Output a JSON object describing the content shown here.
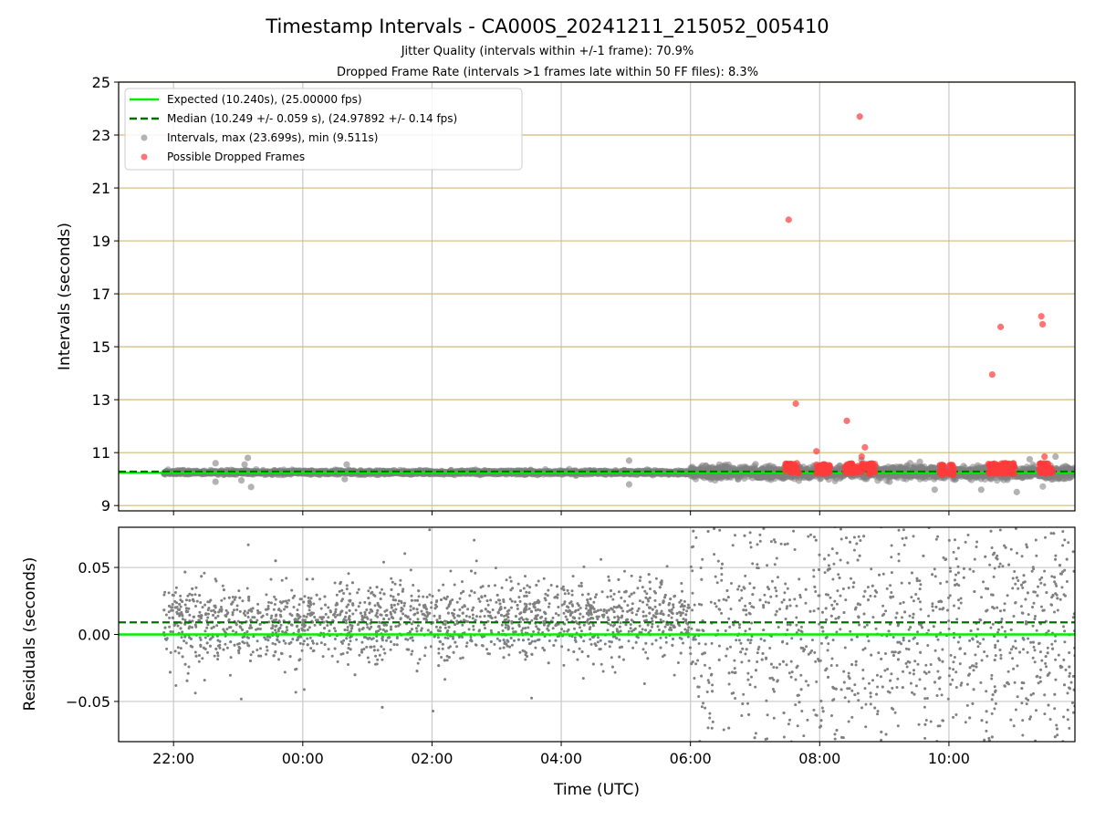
{
  "title": "Timestamp Intervals - CA000S_20241211_215052_005410",
  "subtitle_jitter": "Jitter Quality (intervals within +/-1 frame): 70.9%",
  "subtitle_dropped": "Dropped Frame Rate (intervals >1 frames late within 50 FF files): 8.3%",
  "colors": {
    "expected": "#00ee00",
    "median": "#007000",
    "intervals": "#808080",
    "dropped": "#ff3b3b",
    "hgrid": "#d2b878",
    "vgrid": "#c8c8c8"
  },
  "chart_data": [
    {
      "type": "scatter",
      "panel": "top",
      "ylabel": "Intervals (seconds)",
      "xlim_hours": [
        -2.85,
        11.95
      ],
      "ylim": [
        8.8,
        25
      ],
      "yticks": [
        "9",
        "11",
        "13",
        "15",
        "17",
        "19",
        "21",
        "23",
        "25"
      ],
      "grid": true,
      "legend_position": "top-left",
      "legend": [
        "Expected (10.240s), (25.00000 fps)",
        "Median (10.249 +/- 0.059 s), (24.97892 +/- 0.14 fps)",
        "Intervals, max (23.699s), min (9.511s)",
        "Possible Dropped Frames"
      ],
      "expected_y": 10.24,
      "median_y": 10.249,
      "intervals_max": 23.699,
      "intervals_min": 9.511,
      "dropped_clusters": [
        {
          "x": 7.57,
          "y": 10.4
        },
        {
          "x": 8.05,
          "y": 10.4
        },
        {
          "x": 8.5,
          "y": 10.4
        },
        {
          "x": 8.75,
          "y": 10.4
        },
        {
          "x": 9.97,
          "y": 10.35
        },
        {
          "x": 10.72,
          "y": 10.4
        },
        {
          "x": 10.92,
          "y": 10.4
        },
        {
          "x": 11.5,
          "y": 10.4
        }
      ],
      "dropped_outliers": [
        {
          "x": 8.62,
          "y": 23.699
        },
        {
          "x": 7.52,
          "y": 19.8
        },
        {
          "x": 7.63,
          "y": 12.85
        },
        {
          "x": 8.42,
          "y": 12.2
        },
        {
          "x": 7.95,
          "y": 11.05
        },
        {
          "x": 8.7,
          "y": 11.2
        },
        {
          "x": 8.65,
          "y": 10.85
        },
        {
          "x": 10.67,
          "y": 13.95
        },
        {
          "x": 10.8,
          "y": 15.75
        },
        {
          "x": 11.43,
          "y": 16.15
        },
        {
          "x": 11.45,
          "y": 15.85
        },
        {
          "x": 11.48,
          "y": 10.85
        }
      ],
      "interval_outliers": [
        {
          "x": -1.35,
          "y": 10.6
        },
        {
          "x": -0.85,
          "y": 10.8
        },
        {
          "x": -0.9,
          "y": 10.55
        },
        {
          "x": -0.95,
          "y": 9.95
        },
        {
          "x": -1.35,
          "y": 9.9
        },
        {
          "x": -0.8,
          "y": 9.7
        },
        {
          "x": 0.68,
          "y": 10.55
        },
        {
          "x": 0.5,
          "y": 10.35
        },
        {
          "x": 0.65,
          "y": 10.0
        },
        {
          "x": 4.6,
          "y": 10.3
        },
        {
          "x": 5.05,
          "y": 10.7
        },
        {
          "x": 5.05,
          "y": 9.8
        },
        {
          "x": 9.08,
          "y": 9.9
        },
        {
          "x": 9.4,
          "y": 10.6
        },
        {
          "x": 9.55,
          "y": 10.65
        },
        {
          "x": 9.78,
          "y": 9.6
        },
        {
          "x": 10.5,
          "y": 9.6
        },
        {
          "x": 11.05,
          "y": 9.511
        },
        {
          "x": 11.65,
          "y": 10.85
        },
        {
          "x": 11.25,
          "y": 10.75
        }
      ]
    },
    {
      "type": "scatter",
      "panel": "bottom",
      "xlabel": "Time (UTC)",
      "ylabel": "Residuals (seconds)",
      "xlim_hours": [
        -2.85,
        11.95
      ],
      "ylim": [
        -0.08,
        0.08
      ],
      "yticks": [
        "−0.05",
        "0.00",
        "0.05"
      ],
      "xticks": [
        "22:00",
        "00:00",
        "02:00",
        "04:00",
        "06:00",
        "08:00",
        "10:00"
      ],
      "xtick_hours": [
        -2,
        0,
        2,
        4,
        6,
        8,
        10
      ],
      "expected_residual": 0.0,
      "median_residual": 0.009,
      "grid": true
    }
  ]
}
